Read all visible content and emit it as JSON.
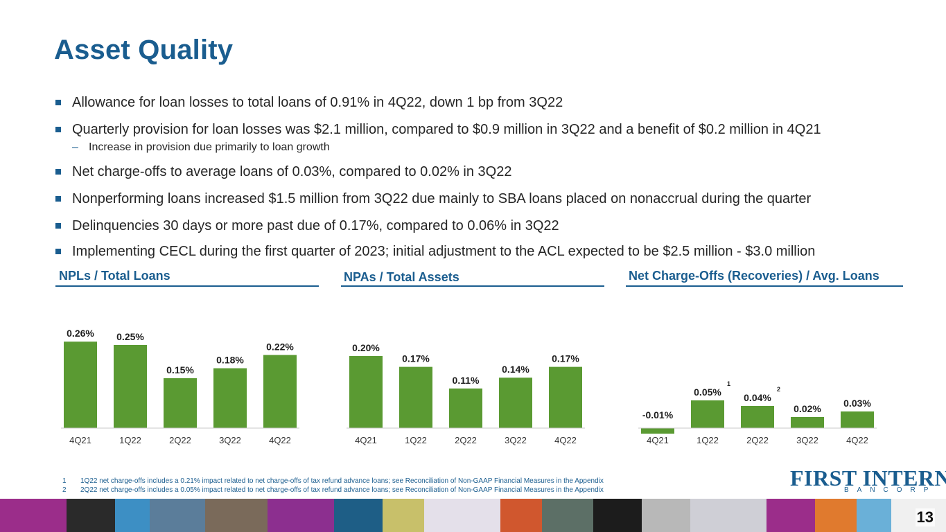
{
  "title": "Asset Quality",
  "bullets": {
    "b1": "Allowance for loan losses to total loans of 0.91% in 4Q22, down 1 bp from 3Q22",
    "b2": "Quarterly provision for loan losses was $2.1 million, compared to $0.9 million in 3Q22 and a benefit of $0.2 million in 4Q21",
    "b2_sub": "Increase in provision due primarily to loan growth",
    "b3": "Net charge-offs to average loans of 0.03%, compared to 0.02% in 3Q22",
    "b4": "Nonperforming loans increased $1.5 million from 3Q22 due mainly to SBA loans placed on nonaccrual during the quarter",
    "b5": "Delinquencies 30 days or more past due of 0.17%, compared to 0.06% in 3Q22",
    "b6": "Implementing CECL during the first quarter of 2023; initial adjustment to the ACL expected to be $2.5 million - $3.0 million"
  },
  "chart_data": [
    {
      "type": "bar",
      "title": "NPLs / Total Loans",
      "categories": [
        "4Q21",
        "1Q22",
        "2Q22",
        "3Q22",
        "4Q22"
      ],
      "values": [
        0.26,
        0.25,
        0.15,
        0.18,
        0.22
      ],
      "labels": [
        "0.26%",
        "0.25%",
        "0.15%",
        "0.18%",
        "0.22%"
      ],
      "superscripts": [
        "",
        "",
        "",
        "",
        ""
      ]
    },
    {
      "type": "bar",
      "title": "NPAs / Total Assets",
      "categories": [
        "4Q21",
        "1Q22",
        "2Q22",
        "3Q22",
        "4Q22"
      ],
      "values": [
        0.2,
        0.17,
        0.11,
        0.14,
        0.17
      ],
      "labels": [
        "0.20%",
        "0.17%",
        "0.11%",
        "0.14%",
        "0.17%"
      ],
      "superscripts": [
        "",
        "",
        "",
        "",
        ""
      ]
    },
    {
      "type": "bar",
      "title": "Net Charge-Offs (Recoveries) / Avg. Loans",
      "categories": [
        "4Q21",
        "1Q22",
        "2Q22",
        "3Q22",
        "4Q22"
      ],
      "values": [
        -0.01,
        0.05,
        0.04,
        0.02,
        0.03
      ],
      "labels": [
        "-0.01%",
        "0.05%",
        "0.04%",
        "0.02%",
        "0.03%"
      ],
      "superscripts": [
        "",
        "1",
        "2",
        "",
        ""
      ]
    }
  ],
  "footnotes": [
    {
      "num": "1",
      "text": "1Q22 net charge-offs includes a 0.21% impact related to net charge-offs of tax refund advance loans; see Reconciliation of Non-GAAP Financial Measures in the Appendix"
    },
    {
      "num": "2",
      "text": "2Q22 net charge-offs includes a 0.05% impact related to net charge-offs of tax refund advance loans; see Reconciliation of Non-GAAP Financial Measures in the Appendix"
    }
  ],
  "logo": {
    "main": "FIRST INTERNET",
    "sub": "BANCORP"
  },
  "page_number": "13",
  "colors": {
    "brand": "#1a5d8f",
    "bar": "#5a9a32"
  }
}
